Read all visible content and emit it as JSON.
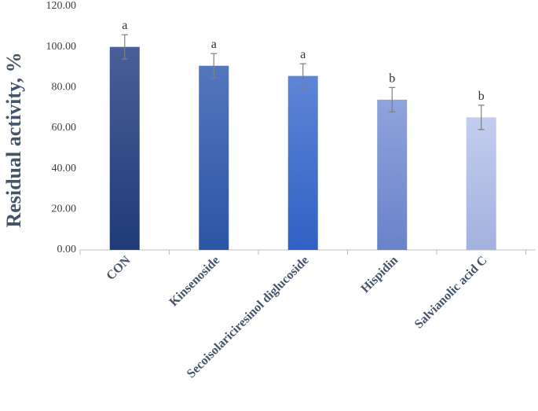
{
  "chart_data": {
    "type": "bar",
    "categories": [
      "CON",
      "Kinsenoside",
      "Secoisolariciresinol diglucoside",
      "Hispidin",
      "Salvianolic acid C"
    ],
    "values": [
      100.0,
      90.7,
      85.7,
      74.0,
      65.3
    ],
    "errors": [
      6.0,
      6.0,
      6.0,
      6.0,
      6.0
    ],
    "significance": [
      "a",
      "a",
      "a",
      "b",
      "b"
    ],
    "xlabel": "",
    "ylabel": "Residual  activity, %",
    "ylim": [
      0,
      120
    ],
    "yticks": [
      "0.00",
      "20.00",
      "40.00",
      "60.00",
      "80.00",
      "100.00",
      "120.00"
    ],
    "grid": false,
    "bar_gradients": [
      [
        "#4a5f9a",
        "#1f3b78"
      ],
      [
        "#5476bd",
        "#2c55a5"
      ],
      [
        "#5f85d6",
        "#2f61c4"
      ],
      [
        "#8fa3dc",
        "#6a82c9"
      ],
      [
        "#c3cdee",
        "#a3b1de"
      ]
    ]
  }
}
